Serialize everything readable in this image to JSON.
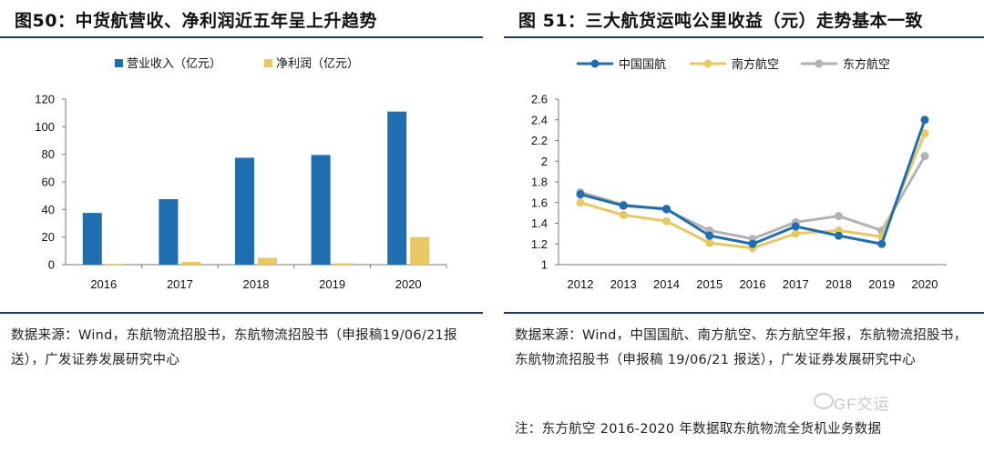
{
  "left": {
    "title": "图50：中货航营收、净利润近五年呈上升趋势",
    "source": "数据来源：Wind，东航物流招股书，东航物流招股书（申报稿19/06/21报送），广发证券发展研究中心"
  },
  "right": {
    "title": "图 51：三大航货运吨公里收益（元）走势基本一致",
    "source": "数据来源：Wind，中国国航、南方航空、东方航空年报，东航物流招股书，东航物流招股书（申报稿 19/06/21 报送），广发证券发展研究中心",
    "note": "注：东方航空 2016-2020 年数据取东航物流全货机业务数据"
  },
  "watermark": "GF交运",
  "chart_data": [
    {
      "type": "bar",
      "title": "图50：中货航营收、净利润近五年呈上升趋势",
      "categories": [
        "2016",
        "2017",
        "2018",
        "2019",
        "2020"
      ],
      "series": [
        {
          "name": "营业收入（亿元）",
          "values": [
            37.5,
            47.5,
            77.5,
            79.5,
            111
          ],
          "color": "#1f6fb0"
        },
        {
          "name": "净利润（亿元）",
          "values": [
            0.5,
            2,
            5,
            1,
            20
          ],
          "color": "#e7c864"
        }
      ],
      "yticks": [
        "0",
        "20",
        "40",
        "60",
        "80",
        "100",
        "120"
      ],
      "ylim": [
        0,
        120
      ],
      "legend": "top-center",
      "grid": false
    },
    {
      "type": "line",
      "title": "图 51：三大航货运吨公里收益（元）走势基本一致",
      "categories": [
        "2012",
        "2013",
        "2014",
        "2015",
        "2016",
        "2017",
        "2018",
        "2019",
        "2020"
      ],
      "series": [
        {
          "name": "中国国航",
          "values": [
            1.68,
            1.57,
            1.54,
            1.28,
            1.2,
            1.37,
            1.28,
            1.2,
            2.4
          ],
          "color": "#1f6fb0"
        },
        {
          "name": "南方航空",
          "values": [
            1.6,
            1.48,
            1.42,
            1.21,
            1.16,
            1.3,
            1.33,
            1.27,
            2.27
          ],
          "color": "#e7c864"
        },
        {
          "name": "东方航空",
          "values": [
            1.7,
            1.58,
            1.53,
            1.33,
            1.25,
            1.41,
            1.47,
            1.33,
            2.05
          ],
          "color": "#b2b2b2"
        }
      ],
      "yticks": [
        "1",
        "1.2",
        "1.4",
        "1.6",
        "1.8",
        "2",
        "2.2",
        "2.4",
        "2.6"
      ],
      "ylim": [
        1,
        2.6
      ],
      "legend": "top-left",
      "grid": false
    }
  ]
}
